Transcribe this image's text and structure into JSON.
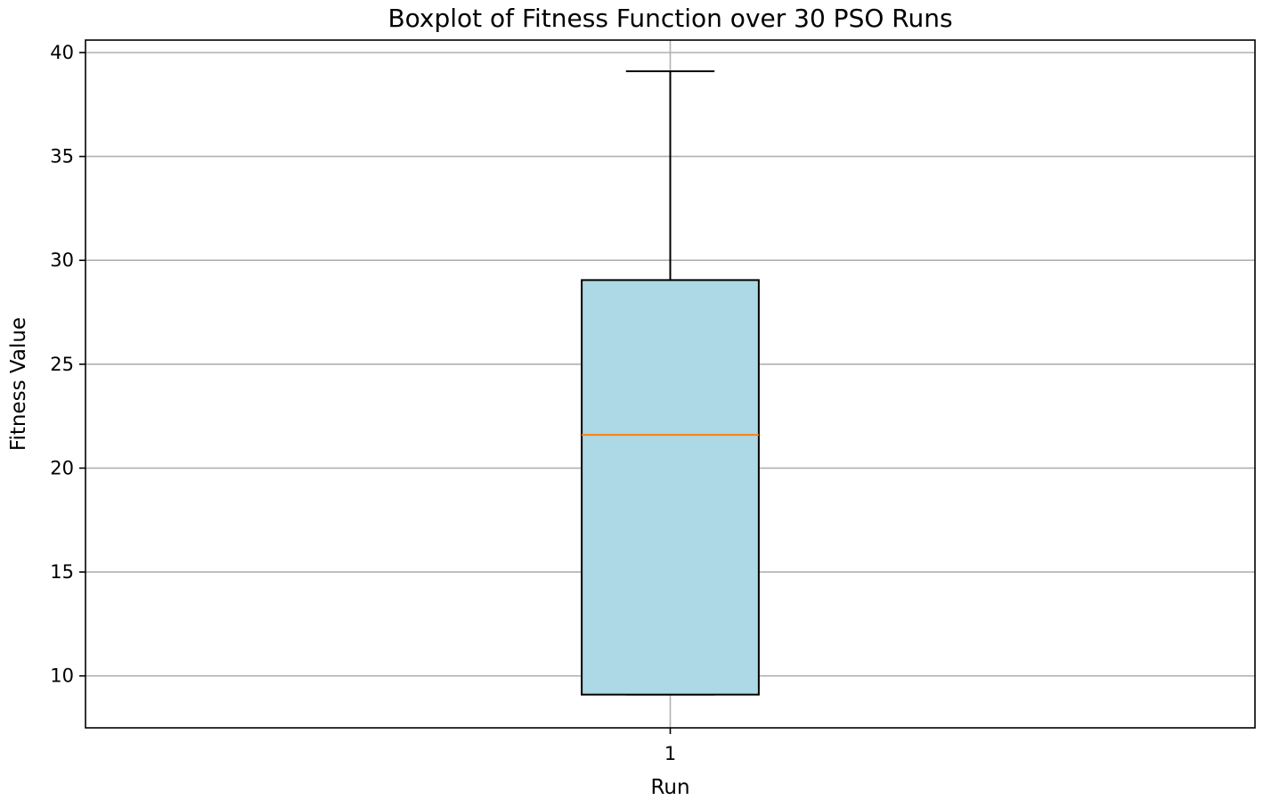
{
  "chart_data": {
    "type": "boxplot",
    "title": "Boxplot of Fitness Function over 30 PSO Runs",
    "xlabel": "Run",
    "ylabel": "Fitness Value",
    "categories": [
      "1"
    ],
    "ylim": [
      7.5,
      40.6
    ],
    "yticks": [
      10,
      15,
      20,
      25,
      30,
      35,
      40
    ],
    "grid": true,
    "boxes": [
      {
        "category": "1",
        "whisker_low": 9.1,
        "q1": 9.1,
        "median": 21.6,
        "q3": 29.05,
        "whisker_high": 39.1
      }
    ],
    "colors": {
      "box_fill": "#add8e6",
      "box_edge": "#000000",
      "median": "#ff7f0e",
      "grid": "#b0b0b0"
    }
  }
}
